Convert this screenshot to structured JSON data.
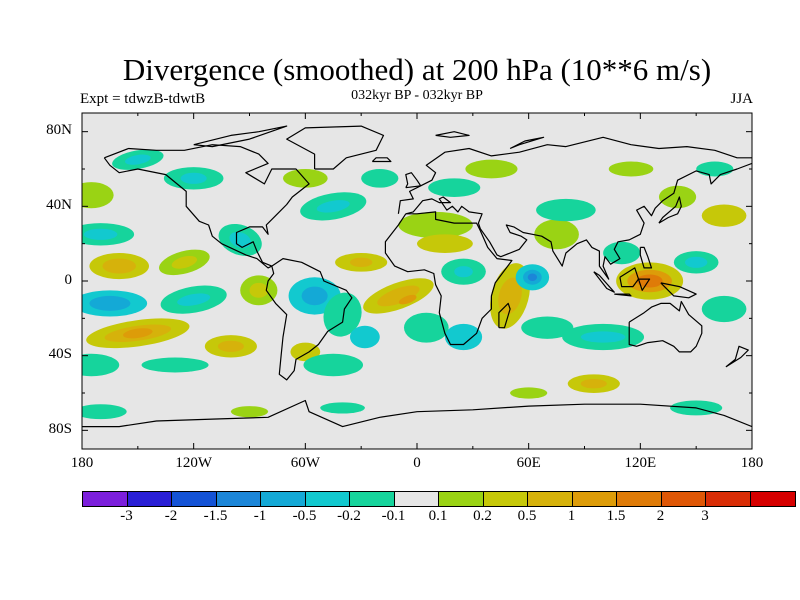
{
  "header": {
    "title": "Divergence (smoothed) at 200 hPa (10**6 m/s)",
    "experiment": "Expt = tdwzB-tdwtB",
    "subtitle": "032kyr BP - 032kyr BP",
    "season": "JJA"
  },
  "axes": {
    "lat_labels": [
      "80N",
      "40N",
      "0",
      "40S",
      "80S"
    ],
    "lon_labels": [
      "180",
      "120W",
      "60W",
      "0",
      "60E",
      "120E",
      "180"
    ]
  },
  "colorbar": {
    "colors": [
      "#7c1fdc",
      "#2a1fd6",
      "#1453d6",
      "#1c86d8",
      "#14a9d6",
      "#12c9cf",
      "#16d49c",
      "#e6e6e6",
      "#9ad314",
      "#c6c809",
      "#d6b20b",
      "#dd9c09",
      "#df7b08",
      "#df5706",
      "#d92d06",
      "#d60000"
    ],
    "labels": [
      "-3",
      "-2",
      "-1.5",
      "-1",
      "-0.5",
      "-0.2",
      "-0.1",
      "0.1",
      "0.2",
      "0.5",
      "1",
      "1.5",
      "2",
      "3"
    ]
  },
  "map_colors": {
    "background": "#e6e6e6",
    "coast": "#000000"
  }
}
